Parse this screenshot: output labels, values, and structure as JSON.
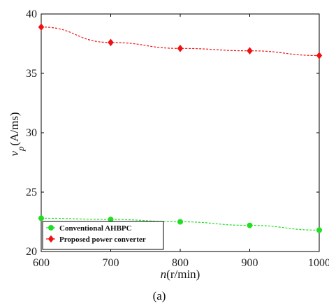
{
  "chart_data": {
    "type": "line",
    "x": [
      600,
      700,
      800,
      900,
      1000
    ],
    "xlim": [
      600,
      1000
    ],
    "ylim": [
      20,
      40
    ],
    "xticks": [
      600,
      700,
      800,
      900,
      1000
    ],
    "yticks": [
      20,
      25,
      30,
      35,
      40
    ],
    "xlabel_italic": "n",
    "xlabel_unit": "(r/min)",
    "ylabel_italic": "v",
    "ylabel_sub": "p",
    "ylabel_unit": "(A/ms)",
    "caption": "(a)",
    "grid": false,
    "legend_position": "bottom-left",
    "series": [
      {
        "name": "Conventional AHBPC",
        "color": "#22dd22",
        "marker": "circle",
        "values": [
          22.8,
          22.7,
          22.5,
          22.2,
          21.8
        ]
      },
      {
        "name": "Proposed power converter",
        "color": "#ee1111",
        "marker": "diamond",
        "values": [
          38.9,
          37.6,
          37.1,
          36.9,
          36.5
        ]
      }
    ]
  }
}
